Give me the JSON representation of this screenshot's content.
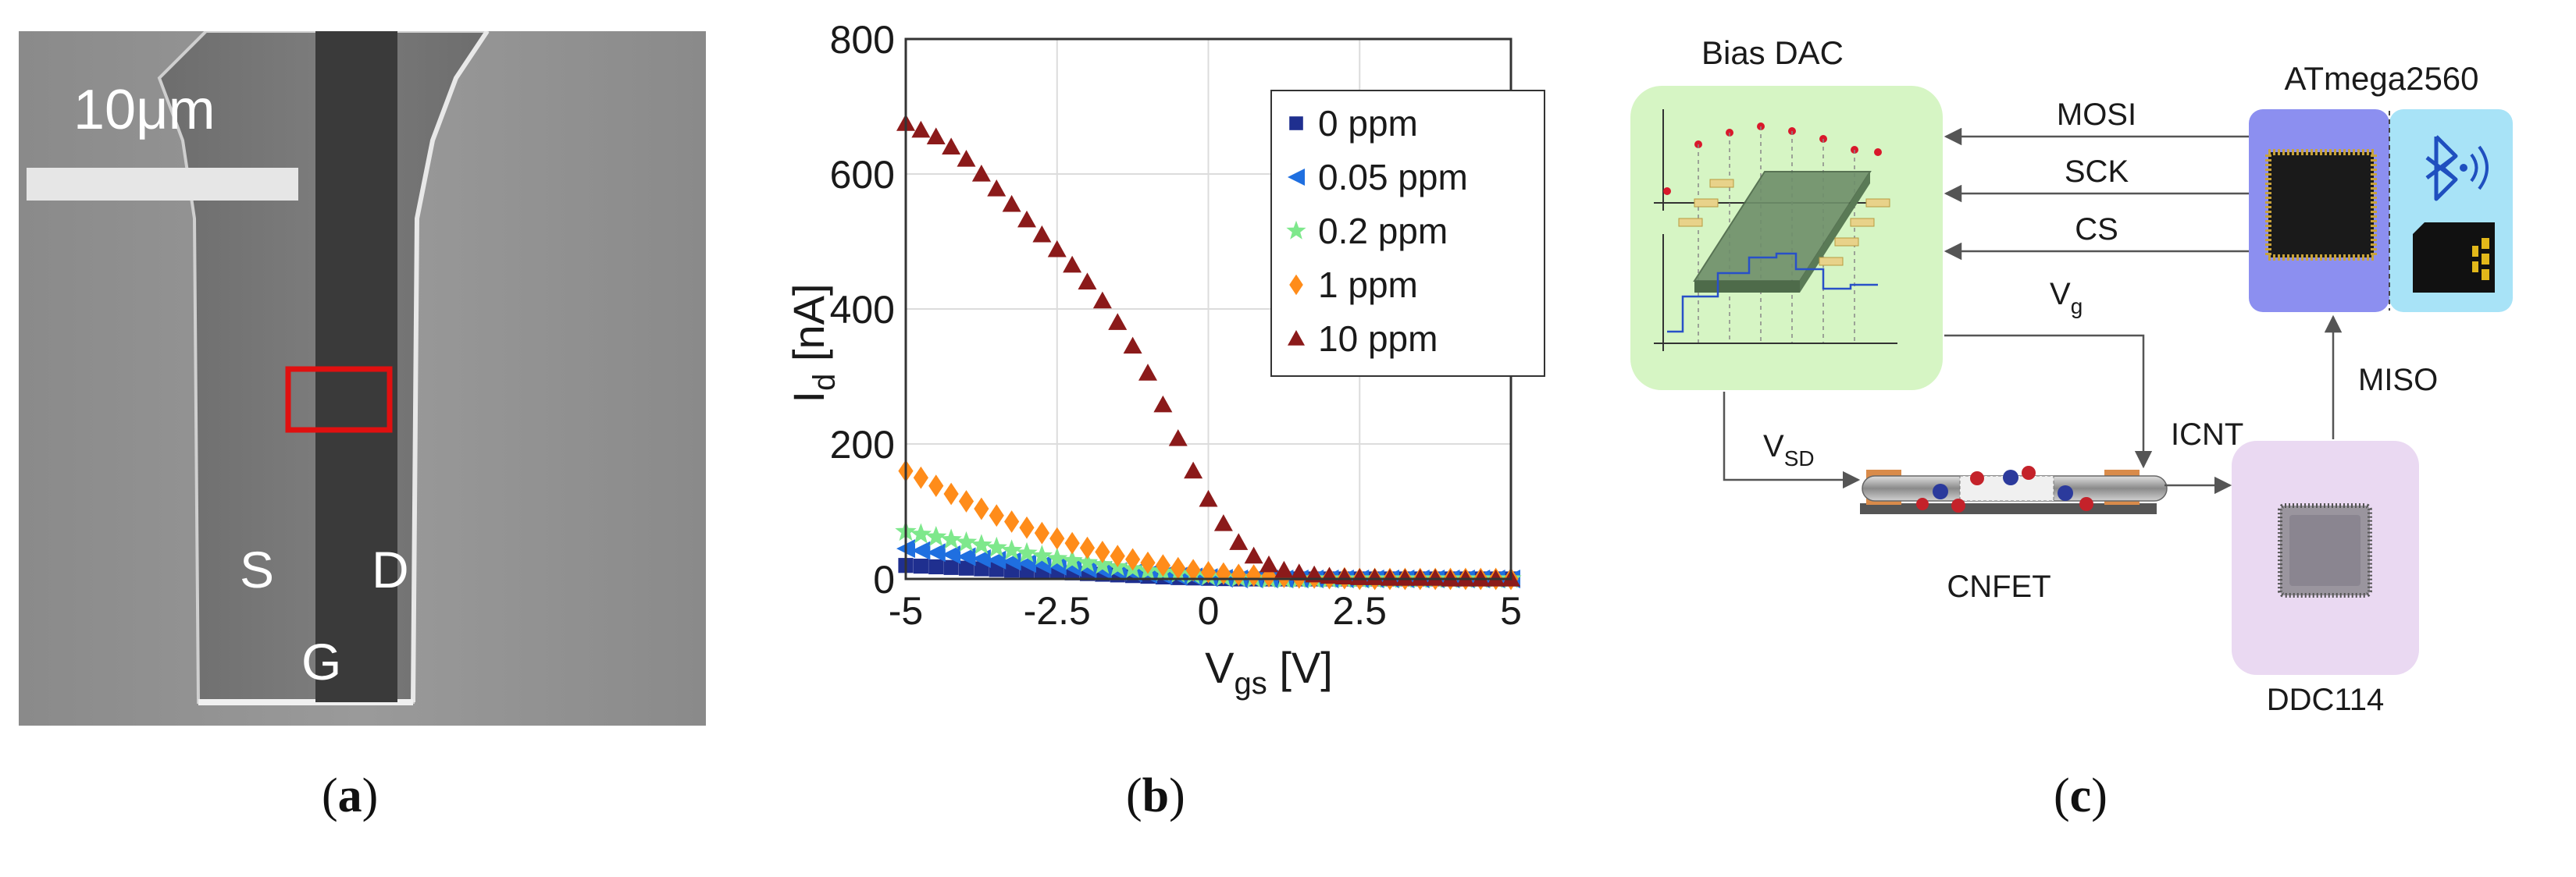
{
  "captions": {
    "a": "a",
    "b": "b",
    "c": "c"
  },
  "panel_a": {
    "scale_bar_label": "10μm",
    "source_label": "S",
    "drain_label": "D",
    "gate_label": "G"
  },
  "chart_data": {
    "type": "scatter",
    "title": "",
    "xlabel_main": "V",
    "xlabel_sub": "gs",
    "xlabel_unit": " [V]",
    "ylabel_main": "I",
    "ylabel_sub": "d",
    "ylabel_unit": " [nA]",
    "xlim": [
      -5,
      5
    ],
    "ylim": [
      0,
      800
    ],
    "x_ticks": [
      -5,
      -2.5,
      0,
      2.5,
      5
    ],
    "x_tick_labels": [
      "-5",
      "-2.5",
      "0",
      "2.5",
      "5"
    ],
    "y_ticks": [
      0,
      200,
      400,
      600,
      800
    ],
    "y_tick_labels": [
      "0",
      "200",
      "400",
      "600",
      "800"
    ],
    "grid": true,
    "legend_position": "top-right",
    "x": [
      -5,
      -4.75,
      -4.5,
      -4.25,
      -4,
      -3.75,
      -3.5,
      -3.25,
      -3,
      -2.75,
      -2.5,
      -2.25,
      -2,
      -1.75,
      -1.5,
      -1.25,
      -1,
      -0.75,
      -0.5,
      -0.25,
      0,
      0.25,
      0.5,
      0.75,
      1,
      1.25,
      1.5,
      1.75,
      2,
      2.25,
      2.5,
      2.75,
      3,
      3.25,
      3.5,
      3.75,
      4,
      4.25,
      4.5,
      4.75,
      5
    ],
    "series": [
      {
        "name": "0 ppm",
        "marker": "square",
        "color": "#1f2f8f",
        "values": [
          20,
          19,
          18,
          17,
          16,
          15,
          14,
          13,
          12,
          11,
          10,
          9,
          8,
          7,
          6,
          5,
          4,
          3,
          2,
          1.5,
          1,
          0.5,
          0,
          0,
          0,
          0,
          0,
          0,
          0,
          0,
          0,
          0,
          0,
          0,
          0,
          0,
          0,
          0,
          0,
          0,
          0
        ]
      },
      {
        "name": "0.05 ppm",
        "marker": "triangle-left",
        "color": "#1f6fe0",
        "values": [
          45,
          42,
          39,
          36,
          33,
          30,
          28,
          26,
          23,
          21,
          19,
          17,
          15,
          13,
          11,
          9,
          7,
          5,
          4,
          3,
          2,
          1,
          0,
          0,
          0,
          0,
          0,
          0,
          0,
          0,
          0,
          0,
          0,
          0,
          0,
          0,
          0,
          0,
          0,
          0,
          0
        ]
      },
      {
        "name": "0.2 ppm",
        "marker": "star",
        "color": "#7ee88c",
        "values": [
          70,
          66,
          62,
          58,
          54,
          50,
          46,
          42,
          38,
          34,
          30,
          27,
          24,
          21,
          18,
          15,
          12,
          10,
          8,
          6,
          4,
          3,
          2,
          1,
          0,
          0,
          0,
          0,
          0,
          0,
          0,
          0,
          0,
          0,
          0,
          0,
          0,
          0,
          0,
          0,
          0
        ]
      },
      {
        "name": "1 ppm",
        "marker": "diamond",
        "color": "#ff8c1a",
        "values": [
          160,
          150,
          138,
          126,
          115,
          104,
          94,
          85,
          76,
          68,
          60,
          53,
          46,
          40,
          34,
          29,
          24,
          20,
          16,
          13,
          10,
          8,
          6,
          5,
          4,
          3,
          2,
          2,
          1,
          1,
          0,
          0,
          0,
          0,
          0,
          0,
          0,
          0,
          0,
          0,
          0
        ]
      },
      {
        "name": "10 ppm",
        "marker": "triangle-up",
        "color": "#8b1a1a",
        "values": [
          675,
          665,
          655,
          640,
          622,
          600,
          578,
          555,
          532,
          510,
          488,
          465,
          440,
          412,
          380,
          345,
          305,
          258,
          208,
          160,
          118,
          82,
          54,
          34,
          21,
          13,
          9,
          6,
          4,
          3,
          2,
          2,
          1,
          1,
          1,
          1,
          0,
          0,
          0,
          0,
          0
        ]
      }
    ]
  },
  "panel_c": {
    "bias_dac_label": "Bias DAC",
    "mcu_label": "ATmega2560",
    "mosi_label": "MOSI",
    "sck_label": "SCK",
    "cs_label": "CS",
    "vg_main": "V",
    "vg_sub": "g",
    "vsd_main": "V",
    "vsd_sub": "SD",
    "icnt_label": "ICNT",
    "miso_label": "MISO",
    "cnfet_label": "CNFET",
    "ddc_label": "DDC114",
    "colors": {
      "dac_box": "#d6f5c4",
      "mcu_box": "#8c8ff0",
      "sd_box": "#a8e3f7",
      "ddc_box": "#ead9f2",
      "line": "#555555"
    }
  }
}
